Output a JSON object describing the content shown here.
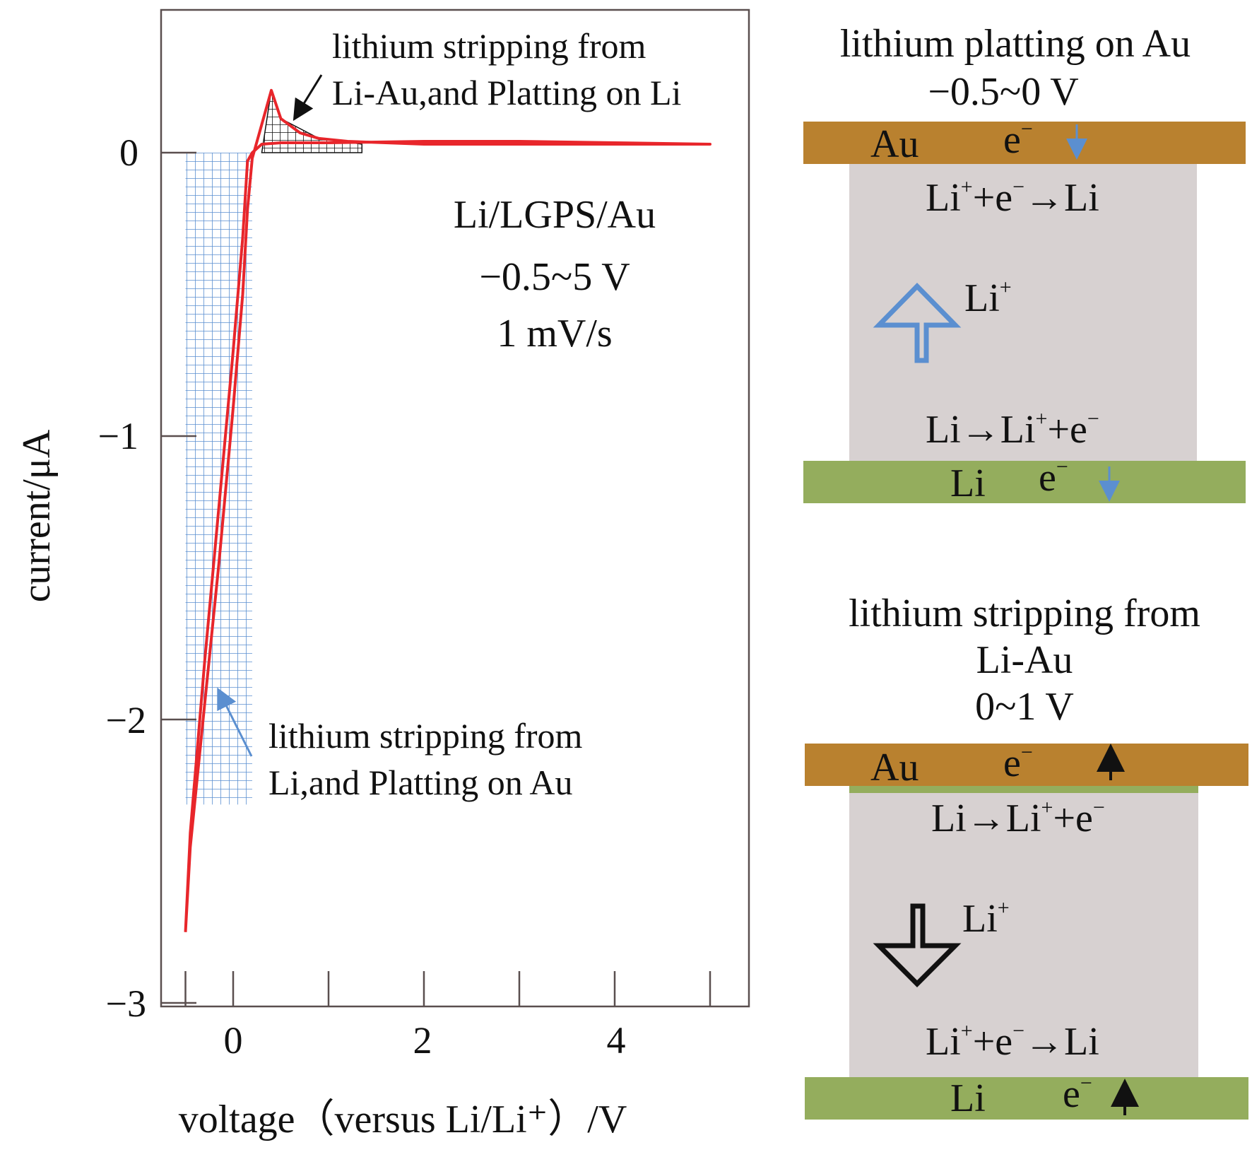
{
  "chart_data": [
    {
      "type": "line",
      "title": "",
      "xlabel": "voltage（versus Li/Li⁺）/V",
      "ylabel": "current/μA",
      "xlim": [
        -0.75,
        5.35
      ],
      "ylim": [
        -3.03,
        0.5
      ],
      "xticks": [
        "0",
        "2",
        "4"
      ],
      "xtick_values": [
        0,
        2,
        4
      ],
      "yticks": [
        "0",
        "−1",
        "−2",
        "−3"
      ],
      "ytick_values": [
        0,
        -1,
        -2,
        -3
      ],
      "grid": false,
      "series_color": "#e8262b",
      "series": [
        {
          "name": "",
          "x": [
            -0.5,
            -0.45,
            -0.3,
            -0.15,
            0.0,
            0.1,
            0.15,
            0.2,
            0.3,
            0.4,
            0.5,
            0.7,
            0.9,
            1.2,
            1.6,
            2.0,
            3.0,
            4.0,
            5.0,
            4.0,
            3.0,
            2.0,
            1.0,
            0.5,
            0.3,
            0.2,
            0.15,
            0.1,
            0.0,
            -0.15,
            -0.3,
            -0.45,
            -0.5
          ],
          "y": [
            -2.75,
            -2.45,
            -1.95,
            -1.45,
            -0.9,
            -0.5,
            -0.2,
            -0.02,
            0.1,
            0.22,
            0.12,
            0.07,
            0.05,
            0.04,
            0.035,
            0.03,
            0.03,
            0.03,
            0.03,
            0.035,
            0.04,
            0.04,
            0.035,
            0.035,
            0.03,
            0.0,
            -0.03,
            -0.3,
            -0.7,
            -1.25,
            -1.8,
            -2.4,
            -2.75
          ]
        }
      ],
      "annotations": [
        {
          "text_lines": [
            "lithium stripping from",
            "Li-Au,and Platting on Li"
          ],
          "arrow_color": "#111111"
        },
        {
          "text_lines": [
            "lithium stripping from",
            "Li,and Platting on Au"
          ],
          "arrow_color": "#5b8fd0"
        },
        {
          "text_lines": [
            "Li/LGPS/Au",
            "−0.5~5 V",
            "1 mV/s"
          ]
        }
      ],
      "shaded_regions": [
        {
          "x": [
            -0.5,
            0.2
          ],
          "y": [
            -2.3,
            0
          ],
          "color": "#5b8fd0",
          "pattern": "grid"
        },
        {
          "x": [
            0.3,
            1.35
          ],
          "y": [
            0,
            0.22
          ],
          "color": "#111111",
          "pattern": "grid"
        }
      ]
    }
  ],
  "schematic": {
    "top": {
      "title_lines": [
        "lithium platting on Au",
        "−0.5~0 V"
      ],
      "top_electrode": "Au",
      "bottom_electrode": "Li",
      "electron": "e",
      "electron_sup": "−",
      "reaction_top": {
        "pre": "Li",
        "pre_sup": "+",
        "mid": "+e",
        "mid_sup": "−",
        "post": "→Li"
      },
      "reaction_bottom": {
        "pre": "Li→Li",
        "pre_sup": "+",
        "mid": "+e",
        "mid_sup": "−"
      },
      "ion": "Li",
      "ion_sup": "+",
      "ion_arrow_color": "#5b8fd0"
    },
    "bottom": {
      "title_lines": [
        "lithium stripping from",
        "Li-Au",
        "0~1 V"
      ],
      "top_electrode": "Au",
      "bottom_electrode": "Li",
      "electron": "e",
      "electron_sup": "−",
      "reaction_top": {
        "pre": "Li→Li",
        "pre_sup": "+",
        "mid": "+e",
        "mid_sup": "−"
      },
      "reaction_bottom": {
        "pre": "Li",
        "pre_sup": "+",
        "mid": "+e",
        "mid_sup": "−",
        "post": "→Li"
      },
      "ion": "Li",
      "ion_sup": "+",
      "ion_arrow_color": "#111111"
    },
    "colors": {
      "au": "#b9812f",
      "li": "#94ad5d",
      "electrolyte": "#d7d1d1",
      "li_film": "#94ad5d"
    }
  }
}
